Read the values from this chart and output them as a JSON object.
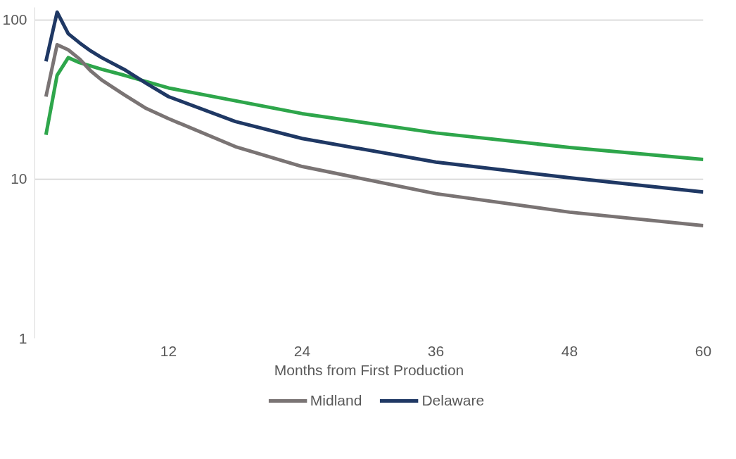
{
  "chart_data": {
    "type": "line",
    "xlabel": "Months from First Production",
    "xlim": [
      0,
      60
    ],
    "xticks": [
      12,
      24,
      36,
      48,
      60
    ],
    "ylim": [
      1,
      120
    ],
    "yticks": [
      1,
      10,
      100
    ],
    "log": "y",
    "grid": "y",
    "legend": "bottom",
    "marker": "none",
    "line_style": "solid",
    "series": [
      {
        "color": "#2ea64b",
        "x": [
          1,
          2,
          3,
          4,
          6,
          8,
          10,
          12,
          24,
          36,
          48,
          60
        ],
        "values": [
          19,
          45,
          58,
          54,
          49,
          45,
          41,
          37.4,
          25.8,
          19.5,
          15.8,
          13.3
        ]
      },
      {
        "name": "Midland",
        "color": "#7a7474",
        "x": [
          1,
          2,
          3,
          4,
          5,
          6,
          8,
          10,
          12,
          18,
          24,
          36,
          48,
          60
        ],
        "values": [
          33,
          70,
          65,
          57,
          48,
          42,
          34,
          27.8,
          24,
          16,
          12,
          8.1,
          6.2,
          5.1
        ]
      },
      {
        "name": "Delaware",
        "color": "#1f3864",
        "x": [
          1,
          2,
          3,
          4,
          5,
          6,
          8,
          10,
          12,
          18,
          24,
          36,
          48,
          60
        ],
        "values": [
          55,
          112,
          82,
          72,
          64,
          58,
          49,
          40,
          33,
          23,
          18,
          12.8,
          10.2,
          8.3
        ]
      }
    ]
  }
}
